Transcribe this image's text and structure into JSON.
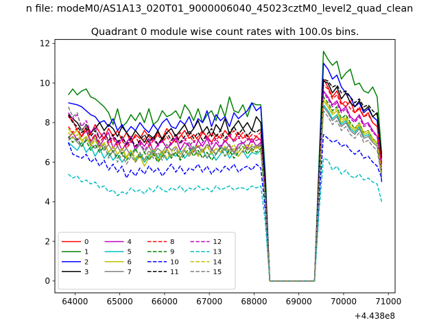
{
  "figure": {
    "suptitle": "n file: modeM0/AS1A13_020T01_9000006040_45023cztM0_level2_quad_clean",
    "title": "Quadrant 0 module wise count rates with 100.0s bins.",
    "offset_text": "+4.438e8"
  },
  "chart_data": {
    "type": "line",
    "title": "Quadrant 0 module wise count rates with 100.0s bins.",
    "xlabel": "",
    "ylabel": "",
    "x_offset": 443800000,
    "xlim": [
      63550,
      71150
    ],
    "ylim": [
      -0.6,
      12.2
    ],
    "xticks": [
      64000,
      65000,
      66000,
      67000,
      68000,
      69000,
      70000,
      71000
    ],
    "xtick_labels": [
      "64000",
      "65000",
      "66000",
      "67000",
      "68000",
      "69000",
      "70000",
      "71000"
    ],
    "yticks": [
      0,
      2,
      4,
      6,
      8,
      10,
      12
    ],
    "ytick_labels": [
      "0",
      "2",
      "4",
      "6",
      "8",
      "10",
      "12"
    ],
    "grid": false,
    "legend_placement": "lower-left",
    "legend_columns": 4,
    "x": {
      "start": 63850,
      "step": 100,
      "count": 71
    },
    "gap_mask": {
      "ramp_down_index": 44,
      "zero_from": 45,
      "zero_to": 55,
      "ramp_up_index": 56
    },
    "series": [
      {
        "name": "0",
        "color": "#ff0000",
        "style": "solid",
        "values": [
          8.3,
          8.1,
          7.6,
          7.3,
          7.8,
          7.4,
          7.9,
          7.5,
          7.2,
          7.7,
          7.3,
          7.6,
          7.1,
          7.5,
          7.0,
          7.4,
          7.2,
          7.6,
          7.3,
          7.1,
          7.5,
          7.2,
          7.7,
          7.4,
          7.0,
          7.3,
          7.6,
          7.2,
          7.4,
          7.1,
          7.5,
          7.3,
          7.0,
          7.4,
          7.2,
          7.6,
          7.3,
          7.1,
          7.5,
          7.2,
          7.4,
          7.0,
          7.3,
          7.1,
          4.5,
          0,
          0,
          0,
          0,
          0,
          0,
          0,
          0,
          0,
          0,
          0,
          5.0,
          10.2,
          9.8,
          9.3,
          9.6,
          9.0,
          8.8,
          9.1,
          8.5,
          8.7,
          8.3,
          8.5,
          8.0,
          7.8,
          6.0
        ]
      },
      {
        "name": "1",
        "color": "#008000",
        "style": "solid",
        "values": [
          9.4,
          9.7,
          9.4,
          9.6,
          9.7,
          9.3,
          9.2,
          9.0,
          8.8,
          8.5,
          7.9,
          8.7,
          7.8,
          8.0,
          8.4,
          8.1,
          8.5,
          8.0,
          8.7,
          7.9,
          8.1,
          8.6,
          8.3,
          8.4,
          8.6,
          8.2,
          8.9,
          8.6,
          8.1,
          8.7,
          8.0,
          8.4,
          8.6,
          8.1,
          8.9,
          8.3,
          9.3,
          8.6,
          8.5,
          8.9,
          8.3,
          9.0,
          8.9,
          8.9,
          5.5,
          0,
          0,
          0,
          0,
          0,
          0,
          0,
          0,
          0,
          0,
          0,
          6.0,
          11.6,
          11.2,
          10.9,
          11.1,
          10.2,
          10.5,
          10.7,
          9.9,
          10.0,
          9.6,
          9.5,
          9.8,
          9.3,
          6.4
        ]
      },
      {
        "name": "2",
        "color": "#0000ff",
        "style": "solid",
        "values": [
          9.0,
          8.95,
          8.9,
          8.8,
          8.6,
          8.4,
          8.3,
          8.0,
          8.1,
          7.8,
          8.2,
          7.6,
          7.9,
          7.5,
          7.8,
          7.6,
          8.0,
          7.7,
          7.5,
          7.9,
          7.6,
          8.0,
          8.2,
          7.8,
          7.7,
          8.1,
          7.9,
          8.3,
          7.7,
          8.2,
          8.0,
          8.6,
          7.8,
          8.4,
          8.1,
          8.3,
          7.8,
          8.5,
          8.2,
          8.4,
          8.6,
          9.0,
          8.6,
          8.8,
          5.0,
          0,
          0,
          0,
          0,
          0,
          0,
          0,
          0,
          0,
          0,
          0,
          5.5,
          11.0,
          10.7,
          10.2,
          10.4,
          9.8,
          9.5,
          9.3,
          8.8,
          9.0,
          8.5,
          8.7,
          8.3,
          8.1,
          5.0
        ]
      },
      {
        "name": "3",
        "color": "#000000",
        "style": "solid",
        "values": [
          8.4,
          8.2,
          8.0,
          7.6,
          7.9,
          7.5,
          7.7,
          8.0,
          7.6,
          7.9,
          7.7,
          7.3,
          7.8,
          7.5,
          7.2,
          7.6,
          7.3,
          7.0,
          7.4,
          7.2,
          7.6,
          7.1,
          7.5,
          7.7,
          7.3,
          7.6,
          7.9,
          7.4,
          7.7,
          8.1,
          7.5,
          7.8,
          7.3,
          7.9,
          7.6,
          8.2,
          7.4,
          7.8,
          8.1,
          7.7,
          8.0,
          7.6,
          8.3,
          8.0,
          4.8,
          0,
          0,
          0,
          0,
          0,
          0,
          0,
          0,
          0,
          0,
          0,
          5.2,
          10.1,
          10.0,
          9.5,
          9.8,
          9.2,
          9.5,
          9.0,
          8.8,
          9.1,
          8.6,
          8.8,
          8.3,
          8.5,
          6.2
        ]
      },
      {
        "name": "4",
        "color": "#bf00bf",
        "style": "solid",
        "values": [
          7.2,
          7.5,
          7.1,
          7.3,
          7.6,
          7.0,
          7.4,
          6.8,
          7.2,
          7.5,
          6.7,
          7.1,
          6.6,
          7.0,
          7.3,
          6.6,
          7.1,
          6.8,
          7.2,
          6.5,
          6.9,
          7.1,
          6.7,
          6.9,
          7.2,
          6.6,
          7.0,
          6.8,
          6.5,
          7.1,
          6.8,
          7.2,
          6.6,
          7.0,
          6.7,
          7.1,
          6.8,
          6.5,
          6.9,
          7.0,
          6.7,
          7.2,
          6.8,
          7.0,
          4.3,
          0,
          0,
          0,
          0,
          0,
          0,
          0,
          0,
          0,
          0,
          0,
          4.9,
          9.6,
          9.3,
          8.9,
          9.1,
          8.6,
          8.8,
          8.3,
          8.1,
          8.4,
          7.9,
          8.0,
          7.6,
          7.3,
          5.6
        ]
      },
      {
        "name": "5",
        "color": "#00bfbf",
        "style": "solid",
        "values": [
          7.0,
          6.8,
          6.6,
          7.0,
          6.5,
          6.8,
          6.3,
          6.7,
          6.2,
          6.5,
          6.1,
          6.4,
          6.0,
          6.3,
          6.5,
          6.1,
          6.4,
          6.0,
          6.3,
          6.6,
          6.2,
          6.5,
          6.1,
          6.4,
          6.3,
          6.6,
          6.2,
          6.5,
          6.8,
          6.3,
          6.6,
          6.2,
          6.5,
          6.1,
          6.4,
          6.7,
          6.2,
          6.5,
          6.3,
          6.6,
          6.2,
          6.5,
          6.4,
          6.6,
          4.0,
          0,
          0,
          0,
          0,
          0,
          0,
          0,
          0,
          0,
          0,
          0,
          4.6,
          8.9,
          8.6,
          8.2,
          8.4,
          7.9,
          8.1,
          7.7,
          7.5,
          7.8,
          7.3,
          7.4,
          7.1,
          6.9,
          5.3
        ]
      },
      {
        "name": "6",
        "color": "#bfbf00",
        "style": "solid",
        "values": [
          7.7,
          7.4,
          7.6,
          7.1,
          7.3,
          6.9,
          7.2,
          6.7,
          7.0,
          6.5,
          6.8,
          6.4,
          6.7,
          6.2,
          6.6,
          6.0,
          6.3,
          5.8,
          6.2,
          6.5,
          6.1,
          6.4,
          6.7,
          6.3,
          6.5,
          6.2,
          6.6,
          6.4,
          6.7,
          6.3,
          6.6,
          6.9,
          6.4,
          6.7,
          6.5,
          6.8,
          6.4,
          6.7,
          6.3,
          6.6,
          6.9,
          6.5,
          6.8,
          6.6,
          4.1,
          0,
          0,
          0,
          0,
          0,
          0,
          0,
          0,
          0,
          0,
          0,
          4.7,
          9.1,
          8.8,
          8.4,
          8.6,
          8.0,
          8.2,
          7.8,
          7.6,
          7.9,
          7.4,
          7.5,
          7.1,
          6.9,
          5.2
        ]
      },
      {
        "name": "7",
        "color": "#808080",
        "style": "solid",
        "values": [
          7.1,
          7.3,
          7.0,
          6.8,
          7.2,
          6.9,
          6.7,
          7.0,
          6.6,
          6.9,
          6.5,
          6.8,
          6.4,
          6.7,
          6.3,
          6.6,
          6.9,
          6.5,
          6.8,
          6.4,
          6.7,
          6.5,
          6.9,
          6.6,
          6.8,
          6.4,
          6.7,
          7.0,
          6.6,
          6.8,
          6.5,
          6.9,
          6.7,
          6.4,
          6.8,
          6.6,
          6.9,
          6.5,
          6.7,
          7.0,
          6.6,
          6.8,
          6.7,
          6.9,
          4.2,
          0,
          0,
          0,
          0,
          0,
          0,
          0,
          0,
          0,
          0,
          0,
          4.8,
          8.8,
          8.5,
          8.1,
          8.3,
          7.8,
          8.0,
          7.6,
          7.4,
          7.7,
          7.2,
          7.3,
          7.0,
          6.8,
          5.4
        ]
      },
      {
        "name": "8",
        "color": "#ff0000",
        "style": "dashed",
        "values": [
          7.8,
          7.5,
          7.7,
          7.3,
          7.6,
          7.1,
          7.4,
          7.0,
          7.3,
          6.9,
          7.2,
          6.8,
          7.1,
          6.7,
          7.0,
          7.3,
          6.9,
          7.2,
          6.8,
          7.1,
          7.4,
          7.0,
          7.3,
          6.9,
          7.2,
          7.5,
          7.1,
          7.4,
          7.0,
          7.3,
          7.6,
          7.2,
          7.5,
          7.1,
          7.4,
          7.0,
          7.3,
          7.6,
          7.2,
          7.5,
          7.1,
          7.4,
          7.3,
          7.5,
          4.6,
          0,
          0,
          0,
          0,
          0,
          0,
          0,
          0,
          0,
          0,
          0,
          5.1,
          9.9,
          9.7,
          9.2,
          9.4,
          8.9,
          9.1,
          8.7,
          8.5,
          8.8,
          8.3,
          8.4,
          8.0,
          7.8,
          5.9
        ]
      },
      {
        "name": "9",
        "color": "#008000",
        "style": "dashed",
        "values": [
          7.3,
          7.0,
          7.2,
          6.8,
          7.1,
          6.6,
          6.9,
          6.5,
          6.8,
          6.3,
          6.6,
          6.2,
          6.5,
          6.1,
          6.4,
          6.7,
          6.2,
          6.5,
          6.1,
          6.4,
          6.0,
          6.3,
          6.6,
          6.2,
          6.5,
          6.1,
          6.4,
          6.7,
          6.3,
          6.6,
          6.2,
          6.5,
          6.1,
          6.4,
          6.7,
          6.3,
          6.6,
          6.2,
          6.5,
          6.8,
          6.4,
          6.7,
          6.5,
          6.7,
          4.1,
          0,
          0,
          0,
          0,
          0,
          0,
          0,
          0,
          0,
          0,
          0,
          4.7,
          9.3,
          9.0,
          8.6,
          8.8,
          8.2,
          8.4,
          8.0,
          7.7,
          8.0,
          7.5,
          7.6,
          7.2,
          7.0,
          5.5
        ]
      },
      {
        "name": "10",
        "color": "#0000ff",
        "style": "dashed",
        "values": [
          7.0,
          6.4,
          6.3,
          6.2,
          6.4,
          6.0,
          6.2,
          5.8,
          6.1,
          5.6,
          5.9,
          5.5,
          5.8,
          5.2,
          5.6,
          5.3,
          5.7,
          5.4,
          5.8,
          5.5,
          5.7,
          5.3,
          5.6,
          5.9,
          5.5,
          5.8,
          5.4,
          5.7,
          5.6,
          5.9,
          5.5,
          5.8,
          5.4,
          5.7,
          5.5,
          5.8,
          5.6,
          5.9,
          5.5,
          5.7,
          5.8,
          5.6,
          5.9,
          5.7,
          3.6,
          0,
          0,
          0,
          0,
          0,
          0,
          0,
          0,
          0,
          0,
          0,
          4.0,
          7.4,
          7.2,
          7.0,
          7.1,
          6.8,
          6.9,
          6.6,
          6.4,
          6.6,
          6.2,
          6.3,
          6.0,
          5.8,
          5.2
        ]
      },
      {
        "name": "11",
        "color": "#000000",
        "style": "dashed",
        "values": [
          8.4,
          8.0,
          7.8,
          7.5,
          7.7,
          7.3,
          7.6,
          7.2,
          7.5,
          7.1,
          7.4,
          7.0,
          7.3,
          6.9,
          7.2,
          6.8,
          7.1,
          7.4,
          7.0,
          7.3,
          6.9,
          7.2,
          7.5,
          7.1,
          7.4,
          7.0,
          7.3,
          7.6,
          7.2,
          7.5,
          7.1,
          7.4,
          7.7,
          7.3,
          7.6,
          7.2,
          7.5,
          7.8,
          7.4,
          7.7,
          7.3,
          7.6,
          7.5,
          7.7,
          4.7,
          0,
          0,
          0,
          0,
          0,
          0,
          0,
          0,
          0,
          0,
          0,
          5.3,
          10.2,
          10.1,
          9.8,
          9.9,
          9.5,
          9.6,
          9.3,
          9.0,
          9.2,
          8.8,
          8.9,
          8.6,
          8.4,
          6.3
        ]
      },
      {
        "name": "12",
        "color": "#bf00bf",
        "style": "dashed",
        "values": [
          8.5,
          8.2,
          8.4,
          7.8,
          8.1,
          7.5,
          7.8,
          7.2,
          7.5,
          7.0,
          7.3,
          6.9,
          7.2,
          6.8,
          7.1,
          6.7,
          7.0,
          6.6,
          6.9,
          7.2,
          6.8,
          7.1,
          6.7,
          7.0,
          7.3,
          6.9,
          7.2,
          6.8,
          7.1,
          6.7,
          7.0,
          7.3,
          6.9,
          7.2,
          6.8,
          7.1,
          7.4,
          7.0,
          7.3,
          6.9,
          7.2,
          7.0,
          7.1,
          7.2,
          4.4,
          0,
          0,
          0,
          0,
          0,
          0,
          0,
          0,
          0,
          0,
          0,
          5.0,
          9.5,
          9.2,
          8.8,
          9.0,
          8.5,
          8.7,
          8.2,
          8.0,
          8.3,
          7.8,
          7.9,
          7.5,
          7.3,
          5.7
        ]
      },
      {
        "name": "13",
        "color": "#00bfbf",
        "style": "dashed",
        "values": [
          5.4,
          5.2,
          5.3,
          5.0,
          5.1,
          4.9,
          5.0,
          4.7,
          4.8,
          4.5,
          4.6,
          4.3,
          4.5,
          4.4,
          4.7,
          4.5,
          4.6,
          4.4,
          4.7,
          4.5,
          4.8,
          4.6,
          4.5,
          4.7,
          4.6,
          4.8,
          4.5,
          4.7,
          4.6,
          4.8,
          4.6,
          4.7,
          4.5,
          4.8,
          4.6,
          4.7,
          4.8,
          4.6,
          4.7,
          4.7,
          4.6,
          4.8,
          4.7,
          4.8,
          3.0,
          0,
          0,
          0,
          0,
          0,
          0,
          0,
          0,
          0,
          0,
          0,
          3.5,
          6.2,
          6.1,
          5.6,
          5.8,
          5.4,
          5.6,
          5.3,
          5.2,
          5.4,
          5.1,
          5.2,
          5.0,
          4.9,
          4.0
        ]
      },
      {
        "name": "14",
        "color": "#bfbf00",
        "style": "dashed",
        "values": [
          7.5,
          7.2,
          7.4,
          7.0,
          7.3,
          6.8,
          7.1,
          6.7,
          7.0,
          6.5,
          6.8,
          6.4,
          6.7,
          6.3,
          6.6,
          6.2,
          6.5,
          6.1,
          6.4,
          6.7,
          6.3,
          6.6,
          6.2,
          6.5,
          6.8,
          6.4,
          6.7,
          6.3,
          6.6,
          6.9,
          6.5,
          6.8,
          6.4,
          6.7,
          6.5,
          6.8,
          6.6,
          6.9,
          6.5,
          6.8,
          6.6,
          6.9,
          6.7,
          6.8,
          4.2,
          0,
          0,
          0,
          0,
          0,
          0,
          0,
          0,
          0,
          0,
          0,
          4.8,
          9.2,
          8.9,
          8.5,
          8.7,
          8.1,
          8.3,
          7.9,
          7.7,
          8.0,
          7.5,
          7.6,
          7.2,
          7.0,
          5.5
        ]
      },
      {
        "name": "15",
        "color": "#808080",
        "style": "dashed",
        "values": [
          8.8,
          8.3,
          8.5,
          7.6,
          7.9,
          7.0,
          7.3,
          6.6,
          6.9,
          6.2,
          6.6,
          6.0,
          6.4,
          5.9,
          6.3,
          6.0,
          6.5,
          6.1,
          6.6,
          6.2,
          6.5,
          6.1,
          6.6,
          6.3,
          6.7,
          6.2,
          6.6,
          6.3,
          6.8,
          6.4,
          6.7,
          6.2,
          6.6,
          6.4,
          6.8,
          6.3,
          6.7,
          6.4,
          6.8,
          6.5,
          6.7,
          6.6,
          6.9,
          6.8,
          4.2,
          0,
          0,
          0,
          0,
          0,
          0,
          0,
          0,
          0,
          0,
          0,
          4.6,
          8.6,
          8.3,
          7.9,
          8.1,
          7.6,
          7.8,
          7.4,
          7.2,
          7.5,
          7.0,
          7.1,
          6.8,
          6.6,
          5.3
        ]
      }
    ]
  }
}
